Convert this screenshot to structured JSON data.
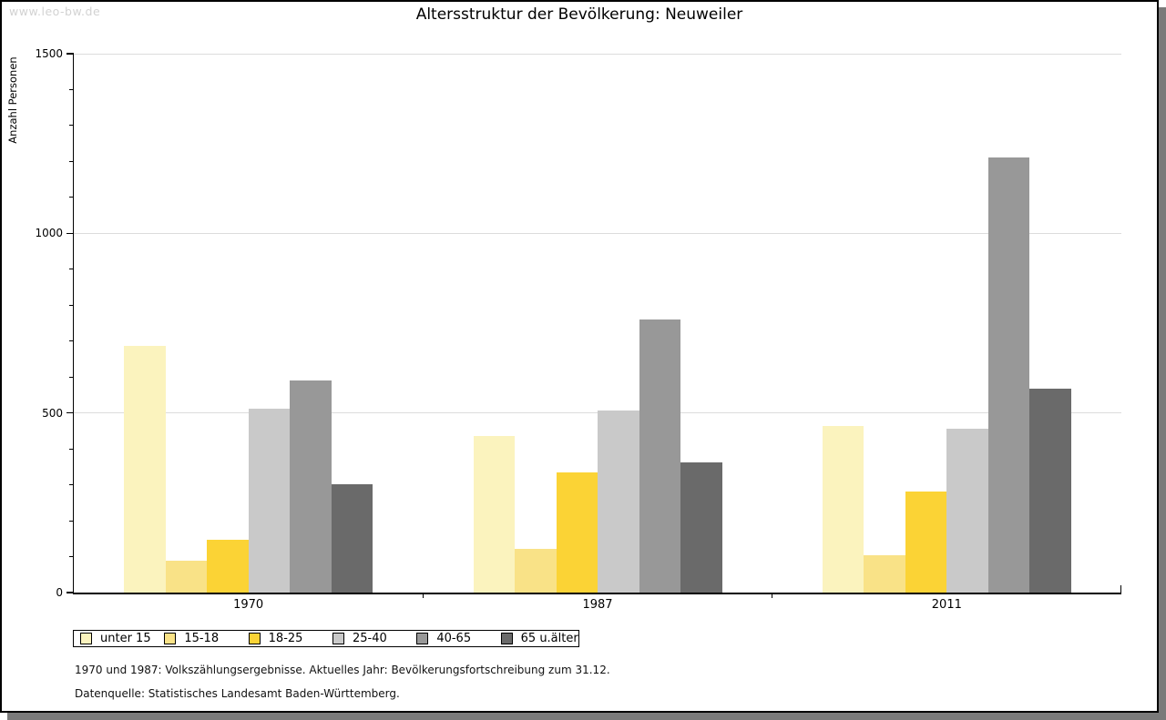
{
  "watermark": "www.leo-bw.de",
  "footnotes": {
    "line1": "1970 und 1987: Volkszählungsergebnisse. Aktuelles Jahr: Bevölkerungsfortschreibung zum 31.12.",
    "line2": "Datenquelle: Statistisches Landesamt Baden-Württemberg."
  },
  "chart_data": {
    "type": "bar",
    "title": "Altersstruktur der Bevölkerung: Neuweiler",
    "xlabel": "",
    "ylabel": "Anzahl Personen",
    "ylim": [
      0,
      1500
    ],
    "ytick_major": [
      0,
      500,
      1000,
      1500
    ],
    "ytick_minor_step": 100,
    "grid": true,
    "legend_position": "bottom",
    "categories": [
      "1970",
      "1987",
      "2011"
    ],
    "series": [
      {
        "name": "unter 15",
        "color": "#FBF3BE",
        "values": [
          687,
          436,
          463
        ]
      },
      {
        "name": "15-18",
        "color": "#F9E287",
        "values": [
          89,
          121,
          104
        ]
      },
      {
        "name": "18-25",
        "color": "#FBD335",
        "values": [
          146,
          334,
          280
        ]
      },
      {
        "name": "25-40",
        "color": "#C9C9C9",
        "values": [
          511,
          508,
          457
        ]
      },
      {
        "name": "40-65",
        "color": "#989898",
        "values": [
          590,
          760,
          1210
        ]
      },
      {
        "name": "65 u.älter",
        "color": "#6A6A6A",
        "values": [
          302,
          362,
          568
        ]
      }
    ],
    "colors": {
      "axis": "#000000",
      "gridline": "#dcdcdc",
      "shadow": "#7a7a7a",
      "watermark": "#d2d2d2"
    }
  }
}
